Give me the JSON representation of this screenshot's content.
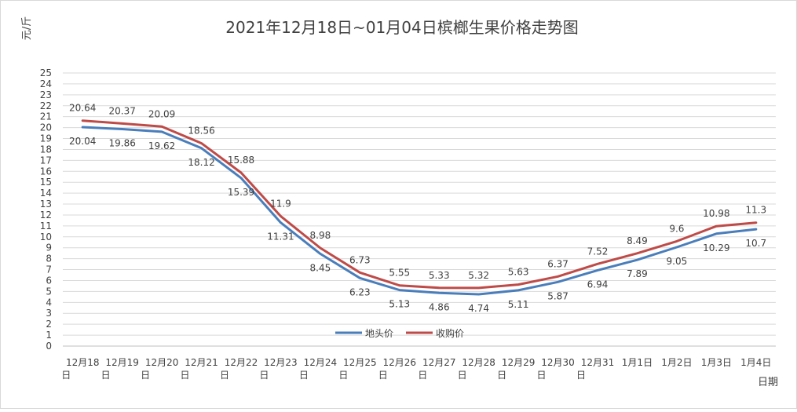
{
  "chart_data": {
    "type": "line",
    "title": "2021年12月18日~01月04日槟榔生果价格走势图",
    "ylabel": "元/斤",
    "xlabel": "日期",
    "ylim": [
      0,
      25
    ],
    "ytick_step": 1,
    "grid": true,
    "legend_position": "bottom-center",
    "categories": [
      {
        "line1": "12月18",
        "line2": "日"
      },
      {
        "line1": "12月19",
        "line2": "日"
      },
      {
        "line1": "12月20",
        "line2": "日"
      },
      {
        "line1": "12月21",
        "line2": "日"
      },
      {
        "line1": "12月22",
        "line2": "日"
      },
      {
        "line1": "12月23",
        "line2": "日"
      },
      {
        "line1": "12月24",
        "line2": "日"
      },
      {
        "line1": "12月25",
        "line2": "日"
      },
      {
        "line1": "12月26",
        "line2": "日"
      },
      {
        "line1": "12月27",
        "line2": "日"
      },
      {
        "line1": "12月28",
        "line2": "日"
      },
      {
        "line1": "12月29",
        "line2": "日"
      },
      {
        "line1": "12月30",
        "line2": "日"
      },
      {
        "line1": "12月31",
        "line2": "日"
      },
      {
        "line1": "1月1日",
        "line2": ""
      },
      {
        "line1": "1月2日",
        "line2": ""
      },
      {
        "line1": "1月3日",
        "line2": ""
      },
      {
        "line1": "1月4日",
        "line2": ""
      }
    ],
    "series": [
      {
        "name": "地头价",
        "color": "#4a7ebb",
        "label_side": "below",
        "values": [
          20.04,
          19.86,
          19.62,
          18.12,
          15.39,
          11.31,
          8.45,
          6.23,
          5.13,
          4.86,
          4.74,
          5.11,
          5.87,
          6.94,
          7.89,
          9.05,
          10.29,
          10.7
        ]
      },
      {
        "name": "收购价",
        "color": "#be4b48",
        "label_side": "above",
        "values": [
          20.64,
          20.37,
          20.09,
          18.56,
          15.88,
          11.9,
          8.98,
          6.73,
          5.55,
          5.33,
          5.32,
          5.63,
          6.37,
          7.52,
          8.49,
          9.6,
          10.98,
          11.3
        ]
      }
    ]
  }
}
